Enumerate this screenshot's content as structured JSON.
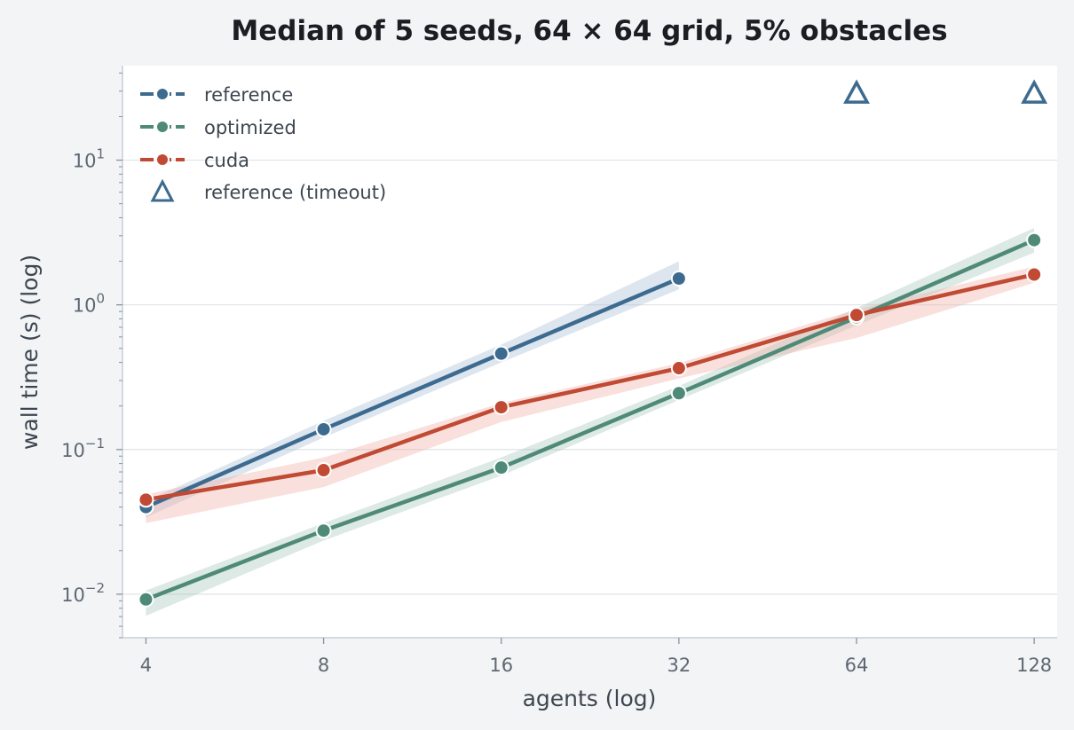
{
  "chart_data": {
    "type": "line",
    "title": "Median of 5 seeds, 64 × 64 grid, 5% obstacles",
    "xlabel": "agents (log)",
    "ylabel": "wall time (s) (log)",
    "x_scale": "log2",
    "y_scale": "log10",
    "x": [
      4,
      8,
      16,
      32,
      64,
      128
    ],
    "x_tick_labels": [
      "4",
      "8",
      "16",
      "32",
      "64",
      "128"
    ],
    "xlim": [
      3.65,
      140
    ],
    "ylim": [
      0.005,
      45
    ],
    "y_ticks": [
      {
        "value": 0.01,
        "base": "10",
        "exp": "−2"
      },
      {
        "value": 0.1,
        "base": "10",
        "exp": "−1"
      },
      {
        "value": 1,
        "base": "10",
        "exp": "0"
      },
      {
        "value": 10,
        "base": "10",
        "exp": "1"
      }
    ],
    "grid": "horizontal at major y ticks",
    "legend_position": "top-left",
    "series": [
      {
        "name": "reference",
        "color": "#3d6b8f",
        "band_color": "#a9bfd6",
        "x": [
          4,
          8,
          16,
          32
        ],
        "values": [
          0.04,
          0.138,
          0.46,
          1.52
        ],
        "band_low": [
          0.034,
          0.121,
          0.4,
          1.28
        ],
        "band_high": [
          0.044,
          0.158,
          0.53,
          2.0
        ]
      },
      {
        "name": "optimized",
        "color": "#4f8a78",
        "band_color": "#a8c9bd",
        "x": [
          4,
          8,
          16,
          32,
          64,
          128
        ],
        "values": [
          0.0092,
          0.0275,
          0.075,
          0.245,
          0.82,
          2.8
        ],
        "band_low": [
          0.0071,
          0.0235,
          0.066,
          0.22,
          0.72,
          2.3
        ],
        "band_high": [
          0.0106,
          0.031,
          0.088,
          0.275,
          0.95,
          3.4
        ]
      },
      {
        "name": "cuda",
        "color": "#c04a33",
        "band_color": "#f0b2a8",
        "x": [
          4,
          8,
          16,
          32,
          64,
          128
        ],
        "values": [
          0.045,
          0.072,
          0.196,
          0.365,
          0.85,
          1.62
        ],
        "band_low": [
          0.031,
          0.055,
          0.155,
          0.31,
          0.59,
          1.42
        ],
        "band_high": [
          0.049,
          0.088,
          0.21,
          0.395,
          0.93,
          1.84
        ]
      }
    ],
    "timeout_markers": {
      "name": "reference (timeout)",
      "color": "#3d6b8f",
      "x": [
        64,
        128
      ],
      "values": [
        29,
        29
      ]
    }
  }
}
